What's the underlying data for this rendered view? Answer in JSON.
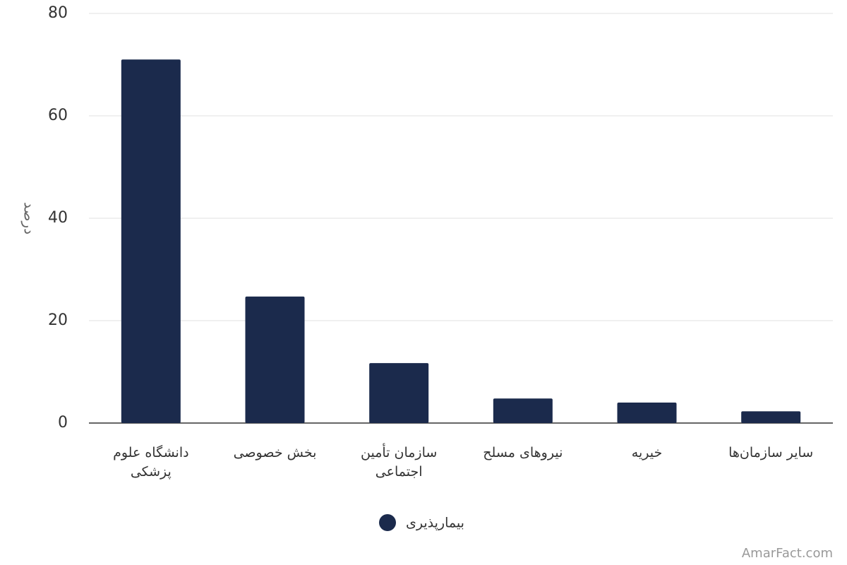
{
  "chart_data": {
    "type": "bar",
    "y_label": "درصد",
    "categories": [
      "دانشگاه علوم پزشکی",
      "بخش خصوصی",
      "سازمان تأمین اجتماعی",
      "نیروهای مسلح",
      "خیریه",
      "سایر سازمان‌ها"
    ],
    "series": [
      {
        "name": "بیمارپذیری",
        "color": "#1b2a4c",
        "values": [
          71.0,
          24.7,
          11.7,
          4.8,
          4.0,
          2.3
        ]
      }
    ],
    "ylim": [
      0,
      80
    ],
    "yticks": [
      0,
      20,
      40,
      60,
      80
    ],
    "grid": true,
    "watermark": "AmarFact.com"
  }
}
